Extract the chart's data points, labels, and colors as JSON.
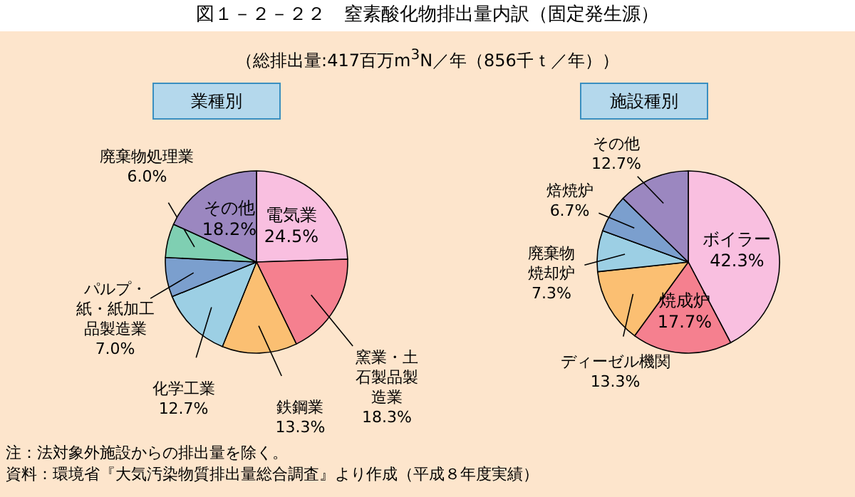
{
  "chart_data": [
    {
      "type": "other",
      "title": "図１－２－２２　窒素酸化物排出量内訳（固定発生源）",
      "subtitle": "（総排出量:417百万m$^{3}$N／年（856千ｔ／年））",
      "annotations": [
        "注：法対象外施設からの排出量を除く。",
        "資料：環境省『大気汚染物質排出量総合調査』より作成（平成８年度実績）"
      ]
    },
    {
      "type": "pie",
      "title": "業種別",
      "categories": [
        "電気業",
        "窯業・土石製品製造業",
        "鉄鋼業",
        "化学工業",
        "パルプ・紙・紙加工品製造業",
        "廃棄物処理業",
        "その他"
      ],
      "values": [
        24.5,
        18.3,
        13.3,
        12.7,
        7.0,
        6.0,
        18.2
      ],
      "value_labels": [
        "24.5%",
        "18.3%",
        "13.3%",
        "12.7%",
        "7.0%",
        "6.0%",
        "18.2%"
      ],
      "colors": [
        "#f9bfe0",
        "#f5808f",
        "#fbbf72",
        "#9ccfe4",
        "#7b9fce",
        "#7fcfb2",
        "#9b87c0"
      ]
    },
    {
      "type": "pie",
      "title": "施設種別",
      "categories": [
        "ボイラー",
        "焼成炉",
        "ディーゼル機関",
        "廃棄物焼却炉",
        "焙焼炉",
        "その他"
      ],
      "values": [
        42.3,
        17.7,
        13.3,
        7.3,
        6.7,
        12.7
      ],
      "value_labels": [
        "42.3%",
        "17.7%",
        "13.3%",
        "7.3%",
        "6.7%",
        "12.7%"
      ],
      "colors": [
        "#f9bfe0",
        "#f5808f",
        "#fbbf72",
        "#9ccfe4",
        "#7b9fce",
        "#9b87c0"
      ]
    }
  ]
}
